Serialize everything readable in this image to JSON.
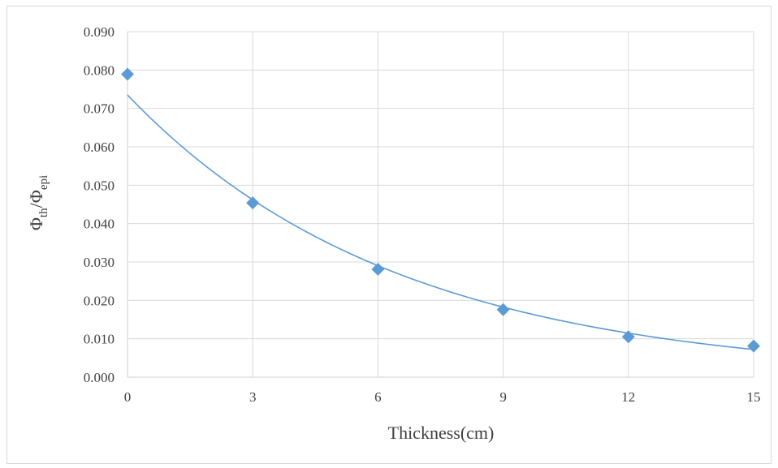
{
  "chart_data": {
    "type": "scatter",
    "title": "",
    "xlabel": "Thickness(cm)",
    "ylabel": {
      "base1": "Φ",
      "sub1": "th",
      "sep": "/",
      "base2": "Φ",
      "sub2": "epi"
    },
    "xlim": [
      0,
      15
    ],
    "ylim": [
      0,
      0.09
    ],
    "x_ticks": [
      "0",
      "3",
      "6",
      "9",
      "12",
      "15"
    ],
    "y_ticks": [
      "0.000",
      "0.010",
      "0.020",
      "0.030",
      "0.040",
      "0.050",
      "0.060",
      "0.070",
      "0.080",
      "0.090"
    ],
    "grid": true,
    "legend": "none",
    "series": [
      {
        "marker": "diamond",
        "color": "#5b9bd5",
        "x": [
          0,
          3,
          6,
          9,
          12,
          15
        ],
        "y": [
          0.0789,
          0.0454,
          0.0281,
          0.0176,
          0.0105,
          0.0081
        ]
      }
    ],
    "trendline": {
      "type": "exponential",
      "a": 0.0735,
      "b": -0.1548,
      "color": "#5b9bd5"
    }
  }
}
